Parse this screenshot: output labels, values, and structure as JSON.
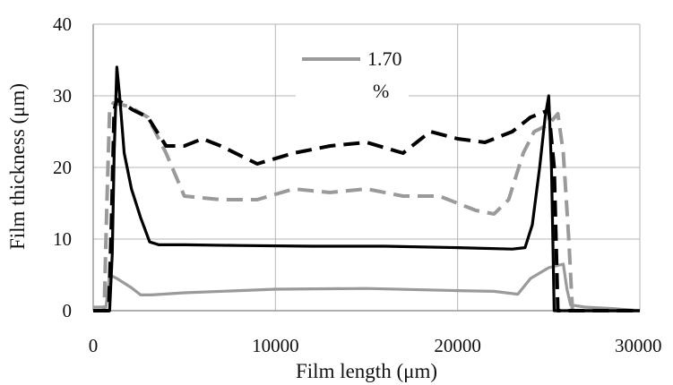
{
  "chart_data": {
    "type": "line",
    "xlabel": "Film length (μm)",
    "ylabel": "Film thickness (μm)",
    "xlim": [
      0,
      30000
    ],
    "ylim": [
      0,
      40
    ],
    "x_ticks": [
      "0",
      "10000",
      "20000",
      "30000"
    ],
    "y_ticks": [
      "0",
      "10",
      "20",
      "30",
      "40"
    ],
    "grid": true,
    "legend": {
      "placement": "top-center",
      "line1": "1.70",
      "line2": "%"
    },
    "series": [
      {
        "style": "solid-black",
        "color": "#000000",
        "dash": "",
        "x": [
          0,
          900,
          1050,
          1150,
          1300,
          1450,
          1700,
          2100,
          2600,
          3100,
          3600,
          5000,
          8000,
          12000,
          16000,
          20000,
          23000,
          23700,
          24100,
          24500,
          24800,
          25000,
          25150,
          25300,
          30000
        ],
        "y": [
          0,
          0,
          8,
          22,
          34,
          30,
          22,
          17,
          13,
          9.6,
          9.2,
          9.2,
          9.1,
          9.0,
          9.0,
          8.8,
          8.6,
          8.8,
          12,
          20,
          27,
          30,
          20,
          0,
          0
        ]
      },
      {
        "style": "solid-gray",
        "color": "#9a9a9a",
        "dash": "",
        "x": [
          0,
          700,
          900,
          1300,
          2100,
          2600,
          3200,
          5000,
          10000,
          15000,
          20000,
          22000,
          23300,
          24000,
          25000,
          25800,
          26000,
          26200,
          27000,
          28500,
          30000
        ],
        "y": [
          0.5,
          0.5,
          5,
          4.5,
          3.2,
          2.2,
          2.2,
          2.5,
          3.0,
          3.1,
          2.8,
          2.7,
          2.3,
          4.5,
          6.0,
          6.5,
          3,
          0.8,
          0.5,
          0.3,
          0
        ],
        "legend_entry": true
      },
      {
        "style": "dashed-black",
        "color": "#000000",
        "dash": "18,9",
        "x": [
          0,
          850,
          1000,
          1150,
          1300,
          2200,
          3000,
          4000,
          5000,
          6000,
          7000,
          9000,
          11000,
          13000,
          15000,
          17000,
          18500,
          20000,
          21500,
          23000,
          24000,
          25000,
          25300,
          25500,
          30000
        ],
        "y": [
          0,
          0,
          12,
          28,
          29.5,
          28,
          27,
          23,
          23,
          24,
          23,
          20.5,
          22,
          23,
          23.5,
          22,
          25,
          24,
          23.5,
          25,
          27,
          28,
          20,
          0,
          0
        ]
      },
      {
        "style": "dashed-gray",
        "color": "#9a9a9a",
        "dash": "18,9",
        "x": [
          0,
          600,
          750,
          900,
          1100,
          2000,
          3000,
          4000,
          5000,
          7000,
          9000,
          11000,
          13000,
          15000,
          17000,
          19000,
          21000,
          22000,
          22800,
          23600,
          24200,
          25000,
          25500,
          25800,
          26100,
          26300,
          30000
        ],
        "y": [
          0,
          0,
          15,
          28,
          29,
          28.5,
          27,
          22,
          16,
          15.5,
          15.5,
          17,
          16.5,
          17,
          16,
          16,
          14,
          13.5,
          15.5,
          22,
          25,
          26,
          27.5,
          22,
          10,
          0,
          0
        ]
      }
    ]
  }
}
